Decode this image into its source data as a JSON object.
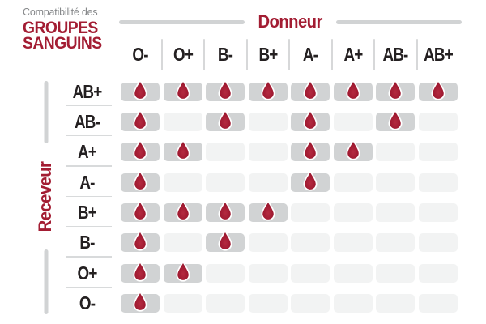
{
  "title": {
    "line1": "Compatibilité des",
    "line2": "GROUPES",
    "line3": "SANGUINS"
  },
  "donor": {
    "label": "Donneur",
    "columns": [
      "O-",
      "O+",
      "B-",
      "B+",
      "A-",
      "A+",
      "AB-",
      "AB+"
    ]
  },
  "receiver": {
    "label": "Receveur",
    "rows": [
      "AB+",
      "AB-",
      "A+",
      "A-",
      "B+",
      "B-",
      "O+",
      "O-"
    ]
  },
  "icons": {
    "compatible_marker": "blood-drop-icon"
  },
  "colors": {
    "brand_red": "#A31D33",
    "drop_center": "#B42A40",
    "drop_edge": "#8C1126",
    "cell_filled": "#D1D3D4",
    "cell_empty": "#F2F3F3",
    "text_dark": "#242021",
    "muted_gray": "#86888A",
    "line_gray": "#D1D3D4"
  },
  "chart_data": {
    "type": "heatmap",
    "title": "Compatibilité des GROUPES SANGUINS",
    "x_axis_label": "Donneur",
    "y_axis_label": "Receveur",
    "columns": [
      "O-",
      "O+",
      "B-",
      "B+",
      "A-",
      "A+",
      "AB-",
      "AB+"
    ],
    "rows": [
      "AB+",
      "AB-",
      "A+",
      "A-",
      "B+",
      "B-",
      "O+",
      "O-"
    ],
    "values": [
      [
        1,
        1,
        1,
        1,
        1,
        1,
        1,
        1
      ],
      [
        1,
        0,
        1,
        0,
        1,
        0,
        1,
        0
      ],
      [
        1,
        1,
        0,
        0,
        1,
        1,
        0,
        0
      ],
      [
        1,
        0,
        0,
        0,
        1,
        0,
        0,
        0
      ],
      [
        1,
        1,
        1,
        1,
        0,
        0,
        0,
        0
      ],
      [
        1,
        0,
        1,
        0,
        0,
        0,
        0,
        0
      ],
      [
        1,
        1,
        0,
        0,
        0,
        0,
        0,
        0
      ],
      [
        1,
        0,
        0,
        0,
        0,
        0,
        0,
        0
      ]
    ],
    "cell_marker": "blood-drop",
    "legend_position": "none",
    "grid": "rounded-cells"
  }
}
